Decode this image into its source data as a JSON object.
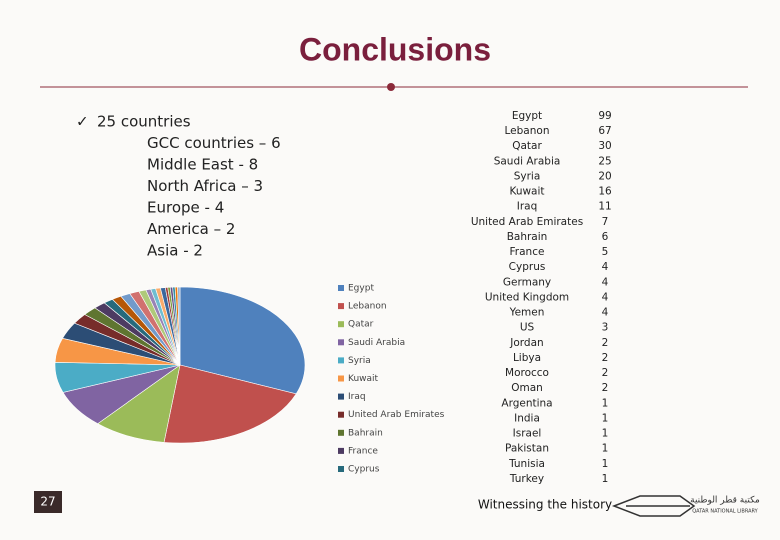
{
  "title": "Conclusions",
  "bullets": [
    "25 countries",
    "GCC countries – 6",
    "Middle East - 8",
    "North Africa – 3",
    "Europe - 4",
    "America – 2",
    "Asia - 2"
  ],
  "chart_data": {
    "type": "pie",
    "categories": [
      "Egypt",
      "Lebanon",
      "Qatar",
      "Saudi Arabia",
      "Syria",
      "Kuwait",
      "Iraq",
      "United Arab Emirates",
      "Bahrain",
      "France",
      "Cyprus",
      "Germany",
      "United Kingdom",
      "Yemen",
      "US",
      "Jordan",
      "Libya",
      "Morocco",
      "Oman",
      "Argentina",
      "India",
      "Israel",
      "Pakistan",
      "Tunisia",
      "Turkey"
    ],
    "values": [
      99,
      67,
      30,
      25,
      20,
      16,
      11,
      7,
      6,
      5,
      4,
      4,
      4,
      4,
      3,
      2,
      2,
      2,
      2,
      1,
      1,
      1,
      1,
      1,
      1
    ],
    "colors": [
      "#4f81bd",
      "#c0504d",
      "#9bbb59",
      "#8064a2",
      "#4bacc6",
      "#f79646",
      "#2c4d75",
      "#772c2a",
      "#5f7530",
      "#4d3b62",
      "#276a7c",
      "#b65708",
      "#729aca",
      "#d1716f",
      "#afc97a",
      "#9983b5",
      "#6fbdd1",
      "#f9ab6b",
      "#3a679c",
      "#9e3b38",
      "#7e9c40",
      "#664f83",
      "#358ea6",
      "#e8770b",
      "#95b3d7"
    ]
  },
  "page_number": "27",
  "footer": "Witnessing the history",
  "logo": {
    "arabic": "مكتبة قطر الوطنية",
    "english": "QATAR NATIONAL LIBRARY"
  }
}
